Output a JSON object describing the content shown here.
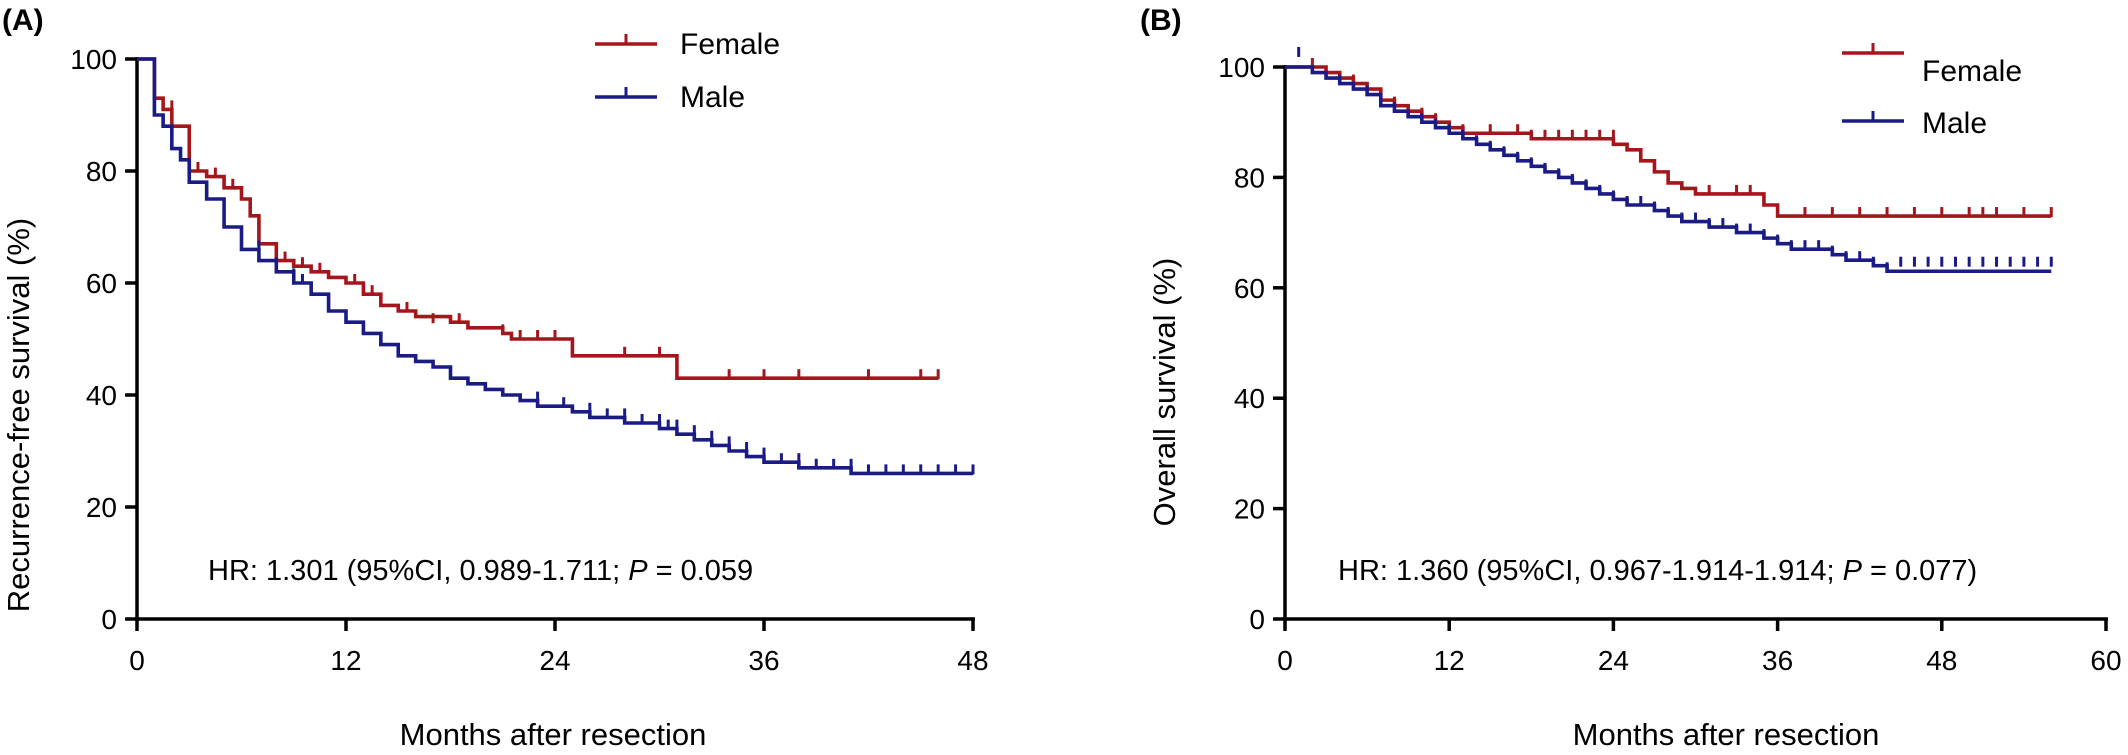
{
  "colors": {
    "female": "#a5161c",
    "male": "#1b1b86",
    "axis": "#000000"
  },
  "chart_data": [
    {
      "panel_label": "(A)",
      "type": "line",
      "xlabel": "Months after resection",
      "ylabel": "Recurrence-free survival (%)",
      "xlim": [
        0,
        48
      ],
      "ylim": [
        0,
        100
      ],
      "xticks": [
        0,
        12,
        24,
        36,
        48
      ],
      "yticks": [
        0,
        20,
        40,
        60,
        80,
        100
      ],
      "legend_position": "top-center",
      "annotation": {
        "prefix": "HR: 1.301 (95%CI, 0.989-1.711; ",
        "italic": "P",
        "suffix": " = 0.059"
      },
      "series": [
        {
          "name": "Female",
          "color": "#a5161c",
          "steps": [
            [
              0,
              100
            ],
            [
              1,
              93
            ],
            [
              1.5,
              91
            ],
            [
              2,
              88
            ],
            [
              3,
              80
            ],
            [
              4,
              79
            ],
            [
              5,
              77
            ],
            [
              6,
              75
            ],
            [
              6.5,
              72
            ],
            [
              7,
              67
            ],
            [
              8,
              64
            ],
            [
              9,
              63
            ],
            [
              10,
              62
            ],
            [
              11,
              61
            ],
            [
              12,
              60
            ],
            [
              13,
              58
            ],
            [
              14,
              56
            ],
            [
              15,
              55
            ],
            [
              16,
              54
            ],
            [
              18,
              53
            ],
            [
              19,
              52
            ],
            [
              21,
              51
            ],
            [
              21.5,
              50
            ],
            [
              25,
              47
            ],
            [
              31,
              43
            ],
            [
              46,
              43
            ]
          ],
          "censored": [
            [
              2,
              91
            ],
            [
              3.5,
              80
            ],
            [
              4.5,
              79
            ],
            [
              5,
              77
            ],
            [
              5.5,
              77
            ],
            [
              8.5,
              64
            ],
            [
              9.5,
              63
            ],
            [
              10.5,
              62
            ],
            [
              12.5,
              60
            ],
            [
              13.5,
              58
            ],
            [
              15.5,
              55
            ],
            [
              17,
              53
            ],
            [
              18.5,
              53
            ],
            [
              21,
              51
            ],
            [
              22,
              50
            ],
            [
              23,
              50
            ],
            [
              24,
              50
            ],
            [
              28,
              47
            ],
            [
              30,
              47
            ],
            [
              34,
              43
            ],
            [
              36,
              43
            ],
            [
              38,
              43
            ],
            [
              42,
              43
            ],
            [
              45,
              43
            ],
            [
              46,
              43
            ]
          ]
        },
        {
          "name": "Male",
          "color": "#1b1b86",
          "steps": [
            [
              0,
              100
            ],
            [
              1,
              90
            ],
            [
              1.5,
              88
            ],
            [
              2,
              84
            ],
            [
              2.5,
              82
            ],
            [
              3,
              78
            ],
            [
              4,
              75
            ],
            [
              5,
              70
            ],
            [
              6,
              66
            ],
            [
              7,
              64
            ],
            [
              8,
              62
            ],
            [
              9,
              60
            ],
            [
              10,
              58
            ],
            [
              11,
              55
            ],
            [
              12,
              53
            ],
            [
              13,
              51
            ],
            [
              14,
              49
            ],
            [
              15,
              47
            ],
            [
              16,
              46
            ],
            [
              17,
              45
            ],
            [
              18,
              43
            ],
            [
              19,
              42
            ],
            [
              20,
              41
            ],
            [
              21,
              40
            ],
            [
              22,
              39
            ],
            [
              23,
              38
            ],
            [
              24,
              38
            ],
            [
              25,
              37
            ],
            [
              26,
              36
            ],
            [
              27,
              36
            ],
            [
              28,
              35
            ],
            [
              29,
              35
            ],
            [
              30,
              34
            ],
            [
              31,
              33
            ],
            [
              32,
              32
            ],
            [
              33,
              31
            ],
            [
              34,
              30
            ],
            [
              35,
              29
            ],
            [
              36,
              28
            ],
            [
              38,
              27
            ],
            [
              41,
              26
            ],
            [
              48,
              26
            ]
          ],
          "censored": [
            [
              1,
              91
            ],
            [
              2,
              86
            ],
            [
              4,
              76
            ],
            [
              6,
              68
            ],
            [
              7,
              66
            ],
            [
              8,
              63
            ],
            [
              9,
              61
            ],
            [
              9.5,
              60
            ],
            [
              23,
              39
            ],
            [
              24.5,
              38
            ],
            [
              26,
              37
            ],
            [
              27,
              36
            ],
            [
              28,
              36
            ],
            [
              29,
              35
            ],
            [
              30,
              35
            ],
            [
              30.5,
              34
            ],
            [
              31,
              34
            ],
            [
              32,
              33
            ],
            [
              33,
              32
            ],
            [
              34,
              31
            ],
            [
              35,
              30
            ],
            [
              36,
              29
            ],
            [
              37,
              28
            ],
            [
              38,
              28
            ],
            [
              39,
              27
            ],
            [
              40,
              27
            ],
            [
              41,
              27
            ],
            [
              42,
              26
            ],
            [
              43,
              26
            ],
            [
              44,
              26
            ],
            [
              45,
              26
            ],
            [
              46,
              26
            ],
            [
              47,
              26
            ],
            [
              48,
              26
            ]
          ]
        }
      ]
    },
    {
      "panel_label": "(B)",
      "type": "line",
      "xlabel": "Months after resection",
      "ylabel": "Overall survival (%)",
      "xlim": [
        0,
        60
      ],
      "ylim": [
        0,
        100
      ],
      "xticks": [
        0,
        12,
        24,
        36,
        48,
        60
      ],
      "yticks": [
        0,
        20,
        40,
        60,
        80,
        100
      ],
      "legend_position": "top-right",
      "annotation": {
        "prefix": "HR: 1.360 (95%CI, 0.967-1.914-1.914; ",
        "italic": "P",
        "suffix": " = 0.077)"
      },
      "series": [
        {
          "name": "Female",
          "color": "#a5161c",
          "steps": [
            [
              0,
              100
            ],
            [
              3,
              99
            ],
            [
              4,
              98
            ],
            [
              5,
              97
            ],
            [
              6,
              96
            ],
            [
              7,
              94
            ],
            [
              8,
              93
            ],
            [
              9,
              92
            ],
            [
              10,
              91
            ],
            [
              11,
              90
            ],
            [
              12,
              89
            ],
            [
              13,
              88
            ],
            [
              14,
              88
            ],
            [
              16,
              88
            ],
            [
              18,
              87
            ],
            [
              24,
              86
            ],
            [
              25,
              85
            ],
            [
              26,
              83
            ],
            [
              27,
              81
            ],
            [
              28,
              79
            ],
            [
              29,
              78
            ],
            [
              30,
              77
            ],
            [
              34,
              77
            ],
            [
              35,
              75
            ],
            [
              36,
              73
            ],
            [
              56,
              73
            ]
          ],
          "censored": [
            [
              2,
              100
            ],
            [
              5,
              97
            ],
            [
              8,
              93
            ],
            [
              10,
              91
            ],
            [
              11,
              90
            ],
            [
              13,
              88
            ],
            [
              15,
              88
            ],
            [
              17,
              88
            ],
            [
              18,
              87
            ],
            [
              19,
              87
            ],
            [
              20,
              87
            ],
            [
              21,
              87
            ],
            [
              22,
              87
            ],
            [
              23,
              87
            ],
            [
              24,
              87
            ],
            [
              28,
              79
            ],
            [
              31,
              77
            ],
            [
              33,
              77
            ],
            [
              34,
              77
            ],
            [
              38,
              73
            ],
            [
              40,
              73
            ],
            [
              42,
              73
            ],
            [
              44,
              73
            ],
            [
              46,
              73
            ],
            [
              48,
              73
            ],
            [
              50,
              73
            ],
            [
              51,
              73
            ],
            [
              52,
              73
            ],
            [
              54,
              73
            ],
            [
              56,
              73
            ]
          ]
        },
        {
          "name": "Male",
          "color": "#1b1b86",
          "steps": [
            [
              0,
              100
            ],
            [
              2,
              99
            ],
            [
              3,
              98
            ],
            [
              4,
              97
            ],
            [
              5,
              96
            ],
            [
              6,
              95
            ],
            [
              7,
              93
            ],
            [
              8,
              92
            ],
            [
              9,
              91
            ],
            [
              10,
              90
            ],
            [
              11,
              89
            ],
            [
              12,
              88
            ],
            [
              13,
              87
            ],
            [
              14,
              86
            ],
            [
              15,
              85
            ],
            [
              16,
              84
            ],
            [
              17,
              83
            ],
            [
              18,
              82
            ],
            [
              19,
              81
            ],
            [
              20,
              80
            ],
            [
              21,
              79
            ],
            [
              22,
              78
            ],
            [
              23,
              77
            ],
            [
              24,
              76
            ],
            [
              25,
              75
            ],
            [
              26,
              75
            ],
            [
              27,
              74
            ],
            [
              28,
              73
            ],
            [
              29,
              72
            ],
            [
              30,
              72
            ],
            [
              31,
              71
            ],
            [
              32,
              71
            ],
            [
              33,
              70
            ],
            [
              34,
              70
            ],
            [
              35,
              69
            ],
            [
              36,
              68
            ],
            [
              37,
              67
            ],
            [
              38,
              67
            ],
            [
              40,
              66
            ],
            [
              41,
              65
            ],
            [
              42,
              65
            ],
            [
              43,
              64
            ],
            [
              44,
              63
            ],
            [
              56,
              63
            ]
          ],
          "censored": [
            [
              1,
              102
            ],
            [
              4,
              97
            ],
            [
              6,
              95
            ],
            [
              8,
              92
            ],
            [
              10,
              90
            ],
            [
              11,
              89
            ],
            [
              12,
              88
            ],
            [
              13,
              87
            ],
            [
              14,
              86
            ],
            [
              15,
              85
            ],
            [
              16,
              84
            ],
            [
              17,
              83
            ],
            [
              18,
              82
            ],
            [
              19,
              81
            ],
            [
              20,
              80
            ],
            [
              21,
              79
            ],
            [
              22,
              78
            ],
            [
              23,
              77
            ],
            [
              24,
              76
            ],
            [
              25,
              75
            ],
            [
              26,
              75
            ],
            [
              27,
              74
            ],
            [
              28,
              73
            ],
            [
              29,
              72
            ],
            [
              30,
              72
            ],
            [
              31,
              71
            ],
            [
              32,
              71
            ],
            [
              33,
              70
            ],
            [
              34,
              70
            ],
            [
              35,
              69
            ],
            [
              36,
              68
            ],
            [
              37,
              67
            ],
            [
              38,
              67
            ],
            [
              39,
              67
            ],
            [
              40,
              66
            ],
            [
              41,
              65
            ],
            [
              42,
              65
            ],
            [
              43,
              64
            ],
            [
              44,
              63
            ],
            [
              45,
              64
            ],
            [
              46,
              64
            ],
            [
              47,
              64
            ],
            [
              48,
              64
            ],
            [
              49,
              64
            ],
            [
              50,
              64
            ],
            [
              51,
              64
            ],
            [
              52,
              64
            ],
            [
              53,
              64
            ],
            [
              54,
              64
            ],
            [
              55,
              64
            ],
            [
              56,
              64
            ]
          ]
        }
      ]
    }
  ]
}
